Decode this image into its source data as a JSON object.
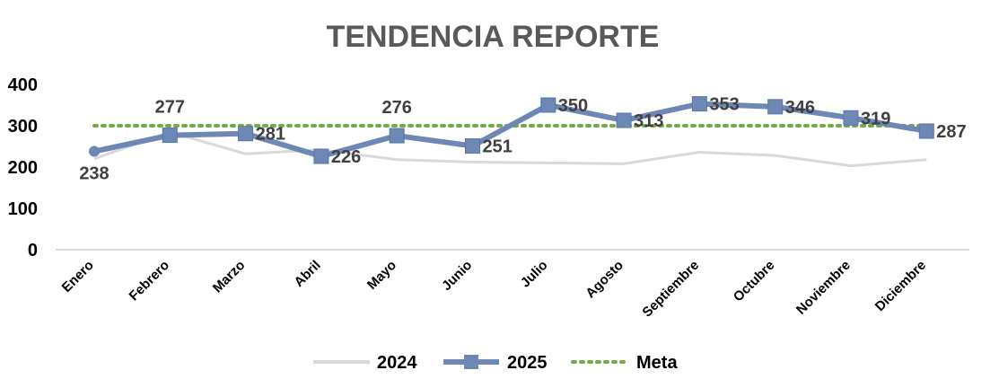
{
  "chart_data": {
    "type": "line",
    "title": "TENDENCIA REPORTE",
    "xlabel": "",
    "ylabel": "",
    "categories": [
      "Enero",
      "Febrero",
      "Marzo",
      "Abril",
      "Mayo",
      "Junio",
      "Julio",
      "Agosto",
      "Septiembre",
      "Octubre",
      "Noviembre",
      "Diciembre"
    ],
    "ylim": [
      0,
      400
    ],
    "yticks": [
      "0",
      "100",
      "200",
      "300",
      "400"
    ],
    "ytick_values": [
      0,
      100,
      200,
      300,
      400
    ],
    "grid": false,
    "legend_position": "bottom",
    "series": [
      {
        "name": "2024",
        "values": [
          220,
          285,
          232,
          242,
          218,
          212,
          210,
          208,
          236,
          228,
          203,
          218
        ],
        "color": "#d9d9d9",
        "style": "solid-thin"
      },
      {
        "name": "2025",
        "values": [
          238,
          277,
          281,
          226,
          276,
          251,
          350,
          313,
          353,
          346,
          319,
          287
        ],
        "labels": [
          "238",
          "277",
          "281",
          "226",
          "276",
          "251",
          "350",
          "313",
          "353",
          "346",
          "319",
          "287"
        ],
        "color": "#6d88b5",
        "style": "solid-thick-square-markers"
      },
      {
        "name": "Meta",
        "values": [
          300,
          300,
          300,
          300,
          300,
          300,
          300,
          300,
          300,
          300,
          300,
          300
        ],
        "color": "#70ad47",
        "style": "dotted"
      }
    ]
  }
}
